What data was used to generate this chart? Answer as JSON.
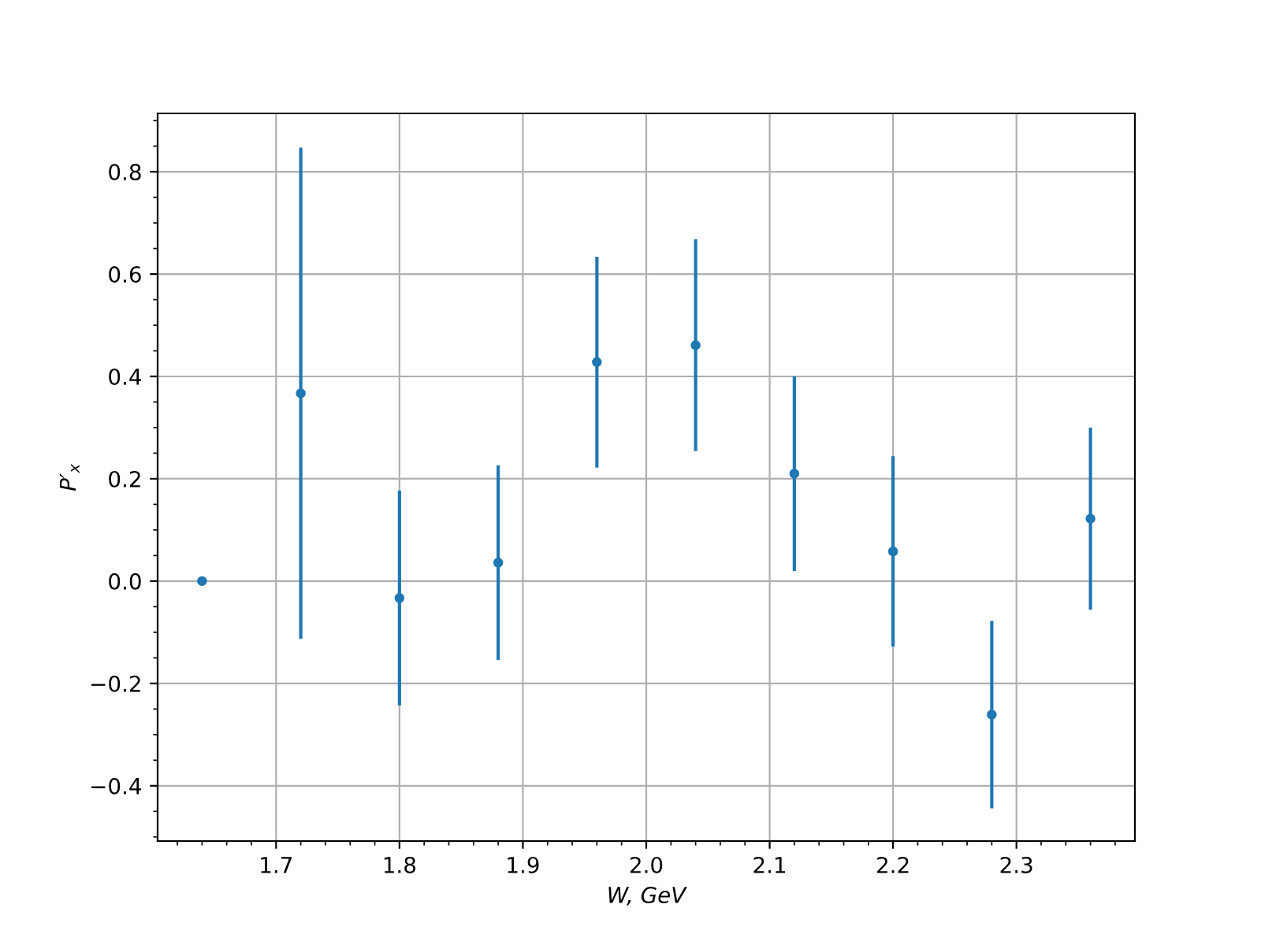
{
  "chart_data": {
    "type": "scatter",
    "xlabel": "W, GeV",
    "ylabel": "P′$_{x}$",
    "x": [
      1.64,
      1.72,
      1.8,
      1.88,
      1.96,
      2.04,
      2.12,
      2.2,
      2.28,
      2.36
    ],
    "series": [
      {
        "color": "#1f77b4",
        "values": [
          0.0,
          0.367,
          -0.033,
          0.036,
          0.428,
          0.461,
          0.21,
          0.058,
          -0.261,
          0.122
        ],
        "errors": [
          null,
          0.48,
          0.21,
          0.19,
          0.206,
          0.207,
          0.19,
          0.186,
          0.183,
          0.178
        ]
      }
    ],
    "marker": "circle",
    "xlim": [
      1.604,
      2.396
    ],
    "xticks": [
      1.7,
      1.8,
      1.9,
      {
        "value": 2,
        "label": "2.0"
      },
      2.1,
      2.2,
      2.3
    ],
    "ylim": [
      -0.508,
      0.914
    ],
    "yticks": [
      {
        "value": -0.4,
        "label": "−0.4"
      },
      {
        "value": -0.2,
        "label": "−0.2"
      },
      {
        "value": 0,
        "label": "0.0"
      },
      0.2,
      0.4,
      0.6,
      0.8
    ],
    "grid": true
  }
}
